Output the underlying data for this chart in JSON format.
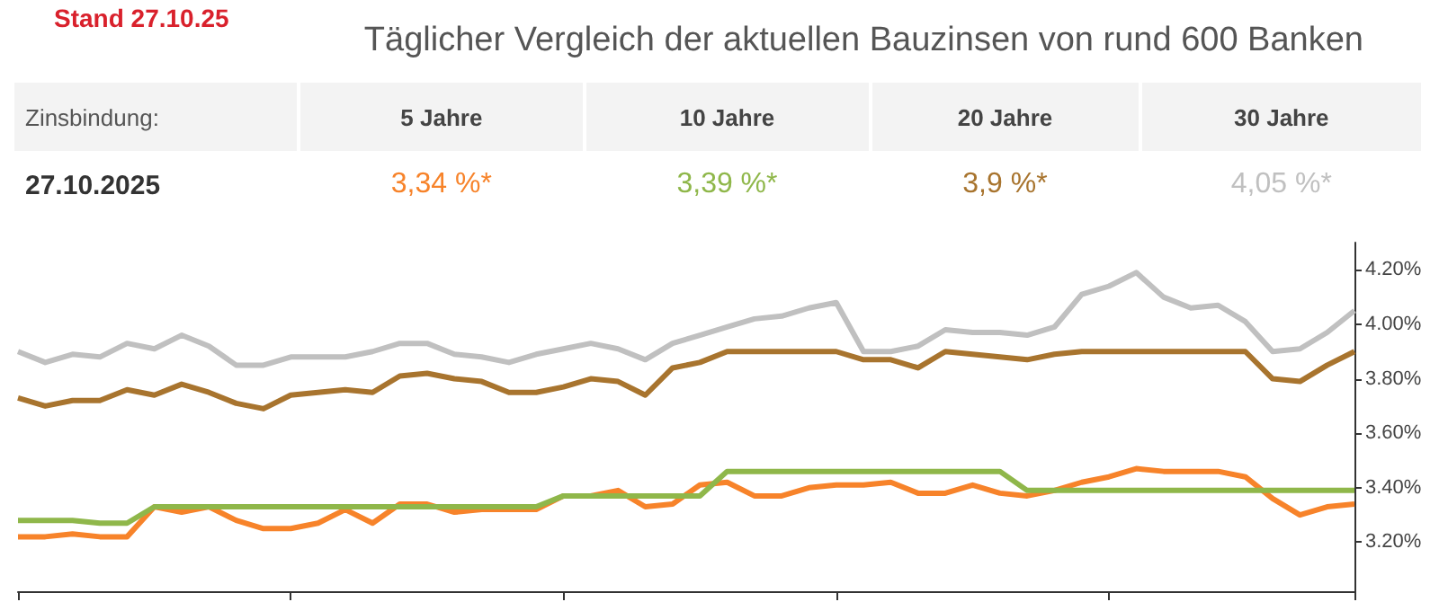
{
  "chart_data": {
    "type": "line",
    "title": "Täglicher Vergleich der aktuellen Bauzinsen von rund 600 Banken",
    "subtitle": "Stand 27.10.25",
    "annotations": [
      "Zinsbindung:",
      "5 Jahre",
      "10 Jahre",
      "20 Jahre",
      "30 Jahre",
      "27.10.2025",
      "3,34 %*",
      "3,39 %*",
      "3,9 %*",
      "4,05 %*"
    ],
    "categories": [
      null,
      null,
      null,
      null,
      null,
      null,
      null,
      null,
      null,
      null,
      null,
      null,
      null,
      null,
      null,
      null,
      null,
      null,
      null,
      null,
      null,
      null,
      null,
      null,
      null,
      null,
      null,
      null,
      null,
      null,
      null,
      null,
      null,
      null,
      null,
      null,
      null,
      null,
      null,
      null,
      null,
      null,
      null,
      null,
      null,
      null,
      null,
      null,
      null,
      null
    ],
    "series": [
      {
        "color": "#f7832a",
        "values": [
          3.22,
          3.22,
          3.23,
          3.22,
          3.22,
          3.33,
          3.31,
          3.33,
          3.28,
          3.25,
          3.25,
          3.27,
          3.32,
          3.27,
          3.34,
          3.34,
          3.31,
          3.32,
          3.32,
          3.32,
          3.37,
          3.37,
          3.39,
          3.33,
          3.34,
          3.41,
          3.42,
          3.37,
          3.37,
          3.4,
          3.41,
          3.41,
          3.42,
          3.38,
          3.38,
          3.41,
          3.38,
          3.37,
          3.39,
          3.42,
          3.44,
          3.47,
          3.46,
          3.46,
          3.46,
          3.44,
          3.36,
          3.3,
          3.33,
          3.34
        ]
      },
      {
        "color": "#8fb74a",
        "values": [
          3.28,
          3.28,
          3.28,
          3.27,
          3.27,
          3.33,
          3.33,
          3.33,
          3.33,
          3.33,
          3.33,
          3.33,
          3.33,
          3.33,
          3.33,
          3.33,
          3.33,
          3.33,
          3.33,
          3.33,
          3.37,
          3.37,
          3.37,
          3.37,
          3.37,
          3.37,
          3.46,
          3.46,
          3.46,
          3.46,
          3.46,
          3.46,
          3.46,
          3.46,
          3.46,
          3.46,
          3.46,
          3.39,
          3.39,
          3.39,
          3.39,
          3.39,
          3.39,
          3.39,
          3.39,
          3.39,
          3.39,
          3.39,
          3.39,
          3.39
        ]
      },
      {
        "color": "#a8742e",
        "values": [
          3.73,
          3.7,
          3.72,
          3.72,
          3.76,
          3.74,
          3.78,
          3.75,
          3.71,
          3.69,
          3.74,
          3.75,
          3.76,
          3.75,
          3.81,
          3.82,
          3.8,
          3.79,
          3.75,
          3.75,
          3.77,
          3.8,
          3.79,
          3.74,
          3.84,
          3.86,
          3.9,
          3.9,
          3.9,
          3.9,
          3.9,
          3.87,
          3.87,
          3.84,
          3.9,
          3.89,
          3.88,
          3.87,
          3.89,
          3.9,
          3.9,
          3.9,
          3.9,
          3.9,
          3.9,
          3.9,
          3.8,
          3.79,
          3.85,
          3.9
        ]
      },
      {
        "color": "#c0c0c0",
        "values": [
          3.9,
          3.86,
          3.89,
          3.88,
          3.93,
          3.91,
          3.96,
          3.92,
          3.85,
          3.85,
          3.88,
          3.88,
          3.88,
          3.9,
          3.93,
          3.93,
          3.89,
          3.88,
          3.86,
          3.89,
          3.91,
          3.93,
          3.91,
          3.87,
          3.93,
          3.96,
          3.99,
          4.02,
          4.03,
          4.06,
          4.08,
          3.9,
          3.9,
          3.92,
          3.98,
          3.97,
          3.97,
          3.96,
          3.99,
          4.11,
          4.14,
          4.19,
          4.1,
          4.06,
          4.07,
          4.01,
          3.9,
          3.91,
          3.97,
          4.05
        ]
      }
    ],
    "ylim": [
      3.02,
      4.3
    ],
    "yticks": [
      {
        "value": 3.2,
        "label": "3.20%"
      },
      {
        "value": 3.4,
        "label": "3.40%"
      },
      {
        "value": 3.6,
        "label": "3.60%"
      },
      {
        "value": 3.8,
        "label": "3.80%"
      },
      {
        "value": 4.0,
        "label": "4.00%"
      },
      {
        "value": 4.2,
        "label": "4.20%"
      }
    ],
    "tick_labels": "y",
    "grid": false
  }
}
